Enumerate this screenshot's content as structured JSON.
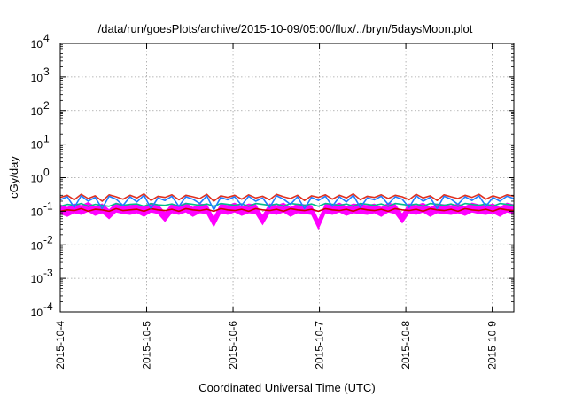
{
  "chart_data": {
    "type": "line",
    "title": "/data/run/goesPlots/archive/2015-10-09/05:00/flux/../bryn/5daysMoon.plot",
    "xlabel": "Coordinated Universal Time (UTC)",
    "ylabel": "cGy/day",
    "yscale": "log",
    "ylim": [
      0.0001,
      10000
    ],
    "xlim": [
      "2015-10-04T00:00",
      "2015-10-09T06:00"
    ],
    "grid": true,
    "legend": "none",
    "x_ticks": [
      "2015-10-4",
      "2015-10-5",
      "2015-10-6",
      "2015-10-7",
      "2015-10-8",
      "2015-10-9"
    ],
    "y_ticks": [
      {
        "base": "10",
        "exp": "-4",
        "value": 0.0001
      },
      {
        "base": "10",
        "exp": "-3",
        "value": 0.001
      },
      {
        "base": "10",
        "exp": "-2",
        "value": 0.01
      },
      {
        "base": "10",
        "exp": "-1",
        "value": 0.1
      },
      {
        "base": "10",
        "exp": "0",
        "value": 1
      },
      {
        "base": "10",
        "exp": "1",
        "value": 10
      },
      {
        "base": "10",
        "exp": "2",
        "value": 100
      },
      {
        "base": "10",
        "exp": "3",
        "value": 1000
      },
      {
        "base": "10",
        "exp": "4",
        "value": 10000
      }
    ],
    "series": [
      {
        "color": "#ff00ff",
        "style": "band",
        "values": [
          0.085,
          0.07,
          0.09,
          0.08,
          0.1,
          0.075,
          0.09,
          0.06,
          0.095,
          0.085,
          0.08,
          0.09,
          0.07,
          0.095,
          0.085,
          0.05,
          0.09,
          0.08,
          0.095,
          0.07,
          0.09,
          0.085,
          0.035,
          0.09,
          0.08,
          0.095,
          0.075,
          0.09,
          0.085,
          0.04,
          0.09,
          0.08,
          0.095,
          0.07,
          0.09,
          0.085,
          0.08,
          0.03,
          0.09,
          0.08,
          0.095,
          0.075,
          0.09,
          0.085,
          0.08,
          0.09,
          0.07,
          0.095,
          0.085,
          0.045,
          0.09,
          0.08,
          0.095,
          0.07,
          0.09,
          0.085,
          0.08,
          0.09,
          0.075,
          0.095,
          0.085,
          0.08,
          0.09,
          0.07,
          0.095,
          0.085
        ]
      },
      {
        "color": "#cc0000",
        "style": "line",
        "values": [
          0.1,
          0.11,
          0.105,
          0.12,
          0.1,
          0.115,
          0.11,
          0.1,
          0.12,
          0.105,
          0.11,
          0.115,
          0.1,
          0.12,
          0.11,
          0.105,
          0.115,
          0.1,
          0.12,
          0.11,
          0.105,
          0.115,
          0.1,
          0.12,
          0.11,
          0.105,
          0.115,
          0.1,
          0.12,
          0.11,
          0.105,
          0.115,
          0.1,
          0.12,
          0.11,
          0.105,
          0.115,
          0.1,
          0.12,
          0.11,
          0.105,
          0.115,
          0.1,
          0.12,
          0.11,
          0.105,
          0.115,
          0.1,
          0.12,
          0.11,
          0.105,
          0.115,
          0.1,
          0.12,
          0.11,
          0.105,
          0.115,
          0.1,
          0.12,
          0.11,
          0.105,
          0.115,
          0.1,
          0.12,
          0.11,
          0.105
        ]
      },
      {
        "color": "#00bb88",
        "style": "line",
        "values": [
          0.14,
          0.16,
          0.15,
          0.17,
          0.14,
          0.16,
          0.15,
          0.14,
          0.17,
          0.15,
          0.16,
          0.165,
          0.14,
          0.17,
          0.155,
          0.15,
          0.165,
          0.14,
          0.17,
          0.16,
          0.15,
          0.165,
          0.14,
          0.17,
          0.16,
          0.15,
          0.165,
          0.14,
          0.17,
          0.16,
          0.15,
          0.165,
          0.14,
          0.17,
          0.16,
          0.15,
          0.165,
          0.14,
          0.17,
          0.16,
          0.15,
          0.165,
          0.14,
          0.17,
          0.16,
          0.15,
          0.165,
          0.14,
          0.17,
          0.16,
          0.15,
          0.165,
          0.14,
          0.17,
          0.16,
          0.15,
          0.165,
          0.14,
          0.17,
          0.16,
          0.15,
          0.165,
          0.14,
          0.17,
          0.16,
          0.15
        ]
      },
      {
        "color": "#e03020",
        "style": "line",
        "values": [
          0.26,
          0.3,
          0.22,
          0.32,
          0.24,
          0.29,
          0.2,
          0.31,
          0.27,
          0.23,
          0.3,
          0.25,
          0.33,
          0.21,
          0.28,
          0.26,
          0.31,
          0.22,
          0.3,
          0.27,
          0.24,
          0.32,
          0.2,
          0.29,
          0.26,
          0.3,
          0.23,
          0.31,
          0.25,
          0.28,
          0.22,
          0.32,
          0.27,
          0.24,
          0.3,
          0.21,
          0.29,
          0.26,
          0.31,
          0.23,
          0.3,
          0.25,
          0.33,
          0.22,
          0.28,
          0.26,
          0.31,
          0.24,
          0.3,
          0.27,
          0.22,
          0.32,
          0.25,
          0.29,
          0.21,
          0.31,
          0.27,
          0.24,
          0.3,
          0.26,
          0.32,
          0.23,
          0.29,
          0.25,
          0.31,
          0.28
        ]
      },
      {
        "color": "#1e7cff",
        "style": "line",
        "values": [
          0.22,
          0.27,
          0.13,
          0.29,
          0.2,
          0.26,
          0.12,
          0.28,
          0.23,
          0.15,
          0.27,
          0.19,
          0.3,
          0.12,
          0.25,
          0.21,
          0.28,
          0.14,
          0.27,
          0.23,
          0.17,
          0.29,
          0.11,
          0.26,
          0.22,
          0.27,
          0.15,
          0.28,
          0.2,
          0.25,
          0.13,
          0.29,
          0.23,
          0.16,
          0.27,
          0.12,
          0.26,
          0.21,
          0.28,
          0.14,
          0.27,
          0.19,
          0.3,
          0.13,
          0.25,
          0.22,
          0.28,
          0.16,
          0.27,
          0.23,
          0.13,
          0.29,
          0.2,
          0.26,
          0.12,
          0.28,
          0.23,
          0.16,
          0.27,
          0.21,
          0.29,
          0.14,
          0.26,
          0.2,
          0.28,
          0.24
        ]
      }
    ]
  }
}
